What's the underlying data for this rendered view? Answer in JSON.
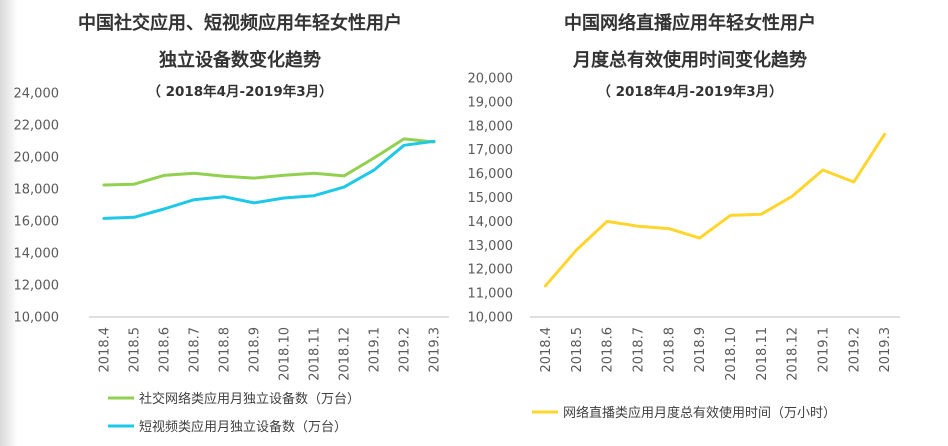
{
  "chart_data": [
    {
      "type": "line",
      "title_line1": "中国社交应用、短视频应用年轻女性用户",
      "title_line2": "独立设备数变化趋势",
      "subtitle": "（ 2018年4月-2019年3月）",
      "categories": [
        "2018.4",
        "2018.5",
        "2018.6",
        "2018.7",
        "2018.8",
        "2018.9",
        "2018.10",
        "2018.11",
        "2018.12",
        "2019.1",
        "2019.2",
        "2019.3"
      ],
      "ylim": [
        10000,
        24000
      ],
      "yticks": [
        "10,000",
        "12,000",
        "14,000",
        "16,000",
        "18,000",
        "20,000",
        "22,000",
        "24,000"
      ],
      "series": [
        {
          "name": "社交网络类应用月独立设备数（万台）",
          "color": "#92d050",
          "values": [
            18250,
            18300,
            18850,
            18980,
            18800,
            18680,
            18860,
            18980,
            18820,
            19940,
            21130,
            20940
          ]
        },
        {
          "name": "短视频类应用月独立设备数（万台）",
          "color": "#1ec8e8",
          "values": [
            16160,
            16230,
            16750,
            17330,
            17520,
            17130,
            17440,
            17580,
            18120,
            19180,
            20730,
            20980
          ]
        }
      ],
      "grid": false,
      "legend": "bottom-left"
    },
    {
      "type": "line",
      "title_line1": "中国网络直播应用年轻女性用户",
      "title_line2": "月度总有效使用时间变化趋势",
      "subtitle": "（ 2018年4月-2019年3月）",
      "categories": [
        "2018.4",
        "2018.5",
        "2018.6",
        "2018.7",
        "2018.8",
        "2018.9",
        "2018.10",
        "2018.11",
        "2018.12",
        "2019.1",
        "2019.2",
        "2019.3"
      ],
      "ylim": [
        10000,
        20000
      ],
      "yticks": [
        "10,000",
        "11,000",
        "12,000",
        "13,000",
        "14,000",
        "15,000",
        "16,000",
        "17,000",
        "18,000",
        "19,000",
        "20,000"
      ],
      "series": [
        {
          "name": "网络直播类应用月度总有效使用时间（万小时）",
          "color": "#ffd52e",
          "values": [
            11300,
            12800,
            14000,
            13800,
            13700,
            13300,
            14250,
            14300,
            15050,
            16150,
            15650,
            17650
          ]
        }
      ],
      "grid": false,
      "legend": "bottom-left"
    }
  ]
}
